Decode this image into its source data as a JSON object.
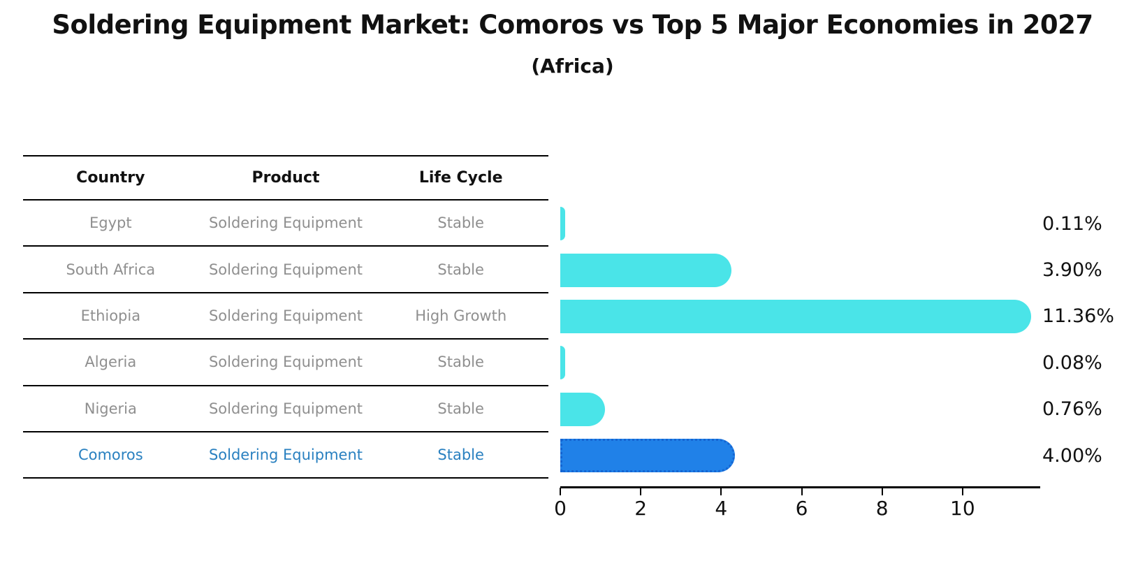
{
  "title": "Soldering Equipment Market: Comoros vs Top 5 Major Economies in 2027",
  "subtitle": "(Africa)",
  "table": {
    "headers": [
      "Country",
      "Product",
      "Life Cycle"
    ],
    "rows": [
      {
        "country": "Egypt",
        "product": "Soldering Equipment",
        "life_cycle": "Stable",
        "highlight": false
      },
      {
        "country": "South Africa",
        "product": "Soldering Equipment",
        "life_cycle": "Stable",
        "highlight": false
      },
      {
        "country": "Ethiopia",
        "product": "Soldering Equipment",
        "life_cycle": "High Growth",
        "highlight": false
      },
      {
        "country": "Algeria",
        "product": "Soldering Equipment",
        "life_cycle": "Stable",
        "highlight": false
      },
      {
        "country": "Nigeria",
        "product": "Soldering Equipment",
        "life_cycle": "Stable",
        "highlight": true
      }
    ],
    "highlight_row": {
      "country": "Comoros",
      "product": "Soldering Equipment",
      "life_cycle": "Stable"
    }
  },
  "chart_data": {
    "type": "bar",
    "orientation": "horizontal",
    "title": "Soldering Equipment Market: Comoros vs Top 5 Major Economies in 2027 (Africa)",
    "categories": [
      "Egypt",
      "South Africa",
      "Ethiopia",
      "Algeria",
      "Nigeria",
      "Comoros"
    ],
    "values": [
      0.11,
      3.9,
      11.36,
      0.08,
      0.76,
      4.0
    ],
    "value_labels": [
      "0.11%",
      "3.90%",
      "11.36%",
      "0.08%",
      "0.76%",
      "4.00%"
    ],
    "x_ticks": [
      0,
      2,
      4,
      6,
      8,
      10
    ],
    "xlim": [
      0,
      11.93
    ],
    "xlabel": "",
    "ylabel": "",
    "grid": false,
    "legend": false,
    "highlight_category": "Comoros",
    "colors": {
      "bar": "#4ae4e8",
      "highlight_bar": "#2081e8",
      "highlight_border": "#1565d2",
      "highlight_text": "#2980c0",
      "row_text": "#8f8f8f",
      "text": "#111111",
      "background": "#ffffff"
    }
  }
}
